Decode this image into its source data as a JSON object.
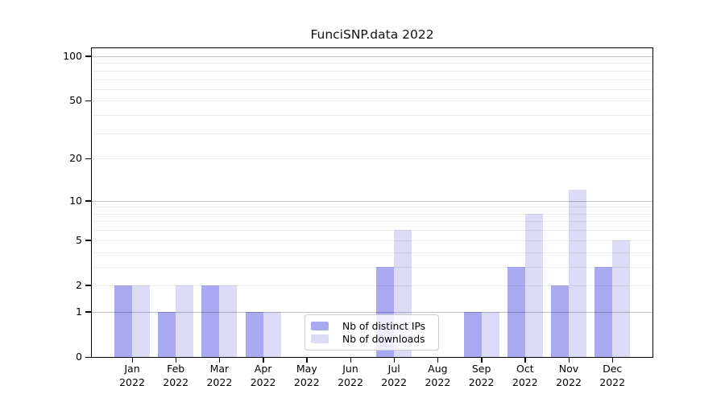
{
  "chart_data": {
    "type": "bar",
    "title": "FunciSNP.data 2022",
    "categories": [
      "Jan 2022",
      "Feb 2022",
      "Mar 2022",
      "Apr 2022",
      "May 2022",
      "Jun 2022",
      "Jul 2022",
      "Aug 2022",
      "Sep 2022",
      "Oct 2022",
      "Nov 2022",
      "Dec 2022"
    ],
    "x_tick_months": [
      "Jan",
      "Feb",
      "Mar",
      "Apr",
      "May",
      "Jun",
      "Jul",
      "Aug",
      "Sep",
      "Oct",
      "Nov",
      "Dec"
    ],
    "x_tick_year": "2022",
    "series": [
      {
        "name": "Nb of distinct IPs",
        "color": "#a9a9f2",
        "values": [
          2,
          1,
          2,
          1,
          0,
          0,
          3,
          0,
          1,
          3,
          2,
          3
        ]
      },
      {
        "name": "Nb of downloads",
        "color": "#dbdbf8",
        "values": [
          2,
          2,
          2,
          1,
          0,
          0,
          6,
          0,
          1,
          8,
          12,
          5
        ]
      }
    ],
    "yscale": "log10(value+1)",
    "ylim": [
      0,
      100
    ],
    "ytick_values": [
      0,
      1,
      2,
      5,
      10,
      20,
      50,
      100
    ],
    "ytick_labels": [
      "0",
      "1",
      "2",
      "5",
      "10",
      "20",
      "50",
      "100"
    ],
    "minor_grid_values": [
      2,
      3,
      4,
      5,
      6,
      7,
      8,
      9,
      20,
      30,
      40,
      50,
      60,
      70,
      80,
      90
    ],
    "major_grid_values": [
      1,
      10,
      100
    ],
    "grid": "horizontal",
    "legend_position": "lower-center-inside"
  },
  "colors": {
    "axis": "#000000",
    "grid_minor": "#ececec",
    "grid_major": "#c2c2c2",
    "background": "#ffffff",
    "legend_border": "#cccccc"
  }
}
